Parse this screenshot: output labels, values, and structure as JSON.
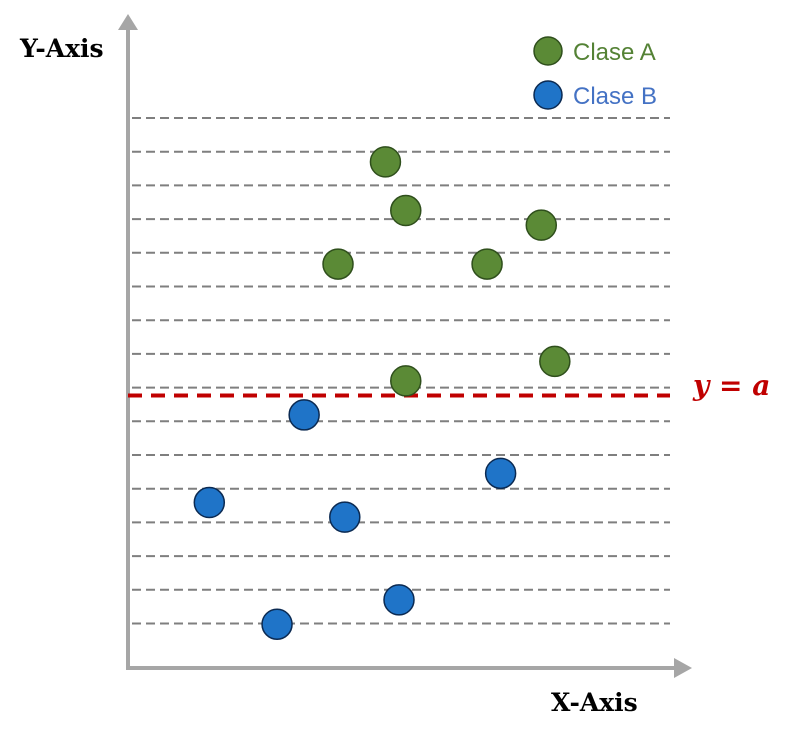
{
  "axes": {
    "y_title": "Y-Axis",
    "x_title": "X-Axis",
    "axis_color": "#a6a6a6",
    "gridline_color": "#7f7f7f",
    "gridline_count": 16
  },
  "legend": {
    "items": [
      {
        "label": "Clase A",
        "color": "#5b8a36",
        "stroke": "#2f4f1c"
      },
      {
        "label": "Clase B",
        "color": "#1f74c8",
        "stroke": "#0b2a52"
      }
    ],
    "label_colors": [
      "#548235",
      "#4472c4"
    ]
  },
  "threshold": {
    "label": "y = a",
    "color": "#c00000"
  },
  "points": {
    "class_a": [
      {
        "x": 3.8,
        "y": 10.4
      },
      {
        "x": 4.1,
        "y": 9.4
      },
      {
        "x": 6.1,
        "y": 9.1
      },
      {
        "x": 3.1,
        "y": 8.3
      },
      {
        "x": 5.3,
        "y": 8.3
      },
      {
        "x": 6.3,
        "y": 6.3
      },
      {
        "x": 4.1,
        "y": 5.9
      }
    ],
    "class_b": [
      {
        "x": 2.6,
        "y": 5.2
      },
      {
        "x": 5.5,
        "y": 4.0
      },
      {
        "x": 1.2,
        "y": 3.4
      },
      {
        "x": 3.2,
        "y": 3.1
      },
      {
        "x": 4.0,
        "y": 1.4
      },
      {
        "x": 2.2,
        "y": 0.9
      }
    ]
  },
  "threshold_y": 5.6
}
